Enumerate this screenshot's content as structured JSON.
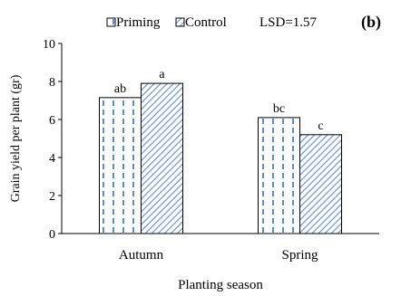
{
  "chart_data": {
    "type": "bar",
    "panel_label": "(b)",
    "categories": [
      "Autumn",
      "Spring"
    ],
    "series": [
      {
        "name": "Priming",
        "values": [
          7.15,
          6.1
        ],
        "pattern": "vertical-dashes",
        "color": "#5b8dd9"
      },
      {
        "name": "Control",
        "values": [
          7.9,
          5.2
        ],
        "pattern": "diagonal-lines",
        "color": "#5b8dd9"
      }
    ],
    "data_labels": [
      [
        "ab",
        "bc"
      ],
      [
        "a",
        "c"
      ]
    ],
    "annotation": "LSD=1.57",
    "xlabel": "Planting season",
    "ylabel": "Grain yield per plant (gr)",
    "ylim": [
      0,
      10
    ],
    "yticks": [
      0,
      2,
      4,
      6,
      8,
      10
    ],
    "grid": false,
    "legend_position": "top"
  }
}
